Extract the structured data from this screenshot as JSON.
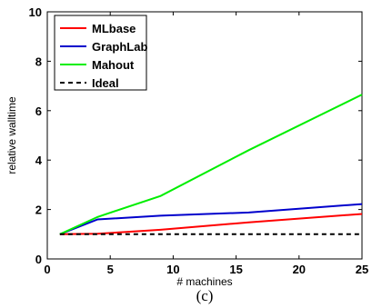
{
  "chart_data": {
    "type": "line",
    "xlabel": "# machines",
    "ylabel": "relative walltime",
    "caption": "(c)",
    "xlim": [
      0,
      25
    ],
    "ylim": [
      0,
      10
    ],
    "xticks": [
      0,
      5,
      10,
      15,
      20,
      25
    ],
    "yticks": [
      0,
      2,
      4,
      6,
      8,
      10
    ],
    "grid": false,
    "legend_position": "top-left",
    "series": [
      {
        "name": "MLbase",
        "color": "#ff0000",
        "dash": "solid",
        "x": [
          1,
          4,
          9,
          16,
          25
        ],
        "y": [
          1.0,
          1.02,
          1.18,
          1.48,
          1.82
        ]
      },
      {
        "name": "GraphLab",
        "color": "#0000cc",
        "dash": "solid",
        "x": [
          1,
          4,
          9,
          16,
          25
        ],
        "y": [
          1.0,
          1.6,
          1.75,
          1.88,
          2.22
        ]
      },
      {
        "name": "Mahout",
        "color": "#00ee00",
        "dash": "solid",
        "x": [
          1,
          4,
          9,
          16,
          25
        ],
        "y": [
          1.0,
          1.7,
          2.55,
          4.4,
          6.65
        ]
      },
      {
        "name": "Ideal",
        "color": "#000000",
        "dash": "dashed",
        "x": [
          1,
          4,
          9,
          16,
          25
        ],
        "y": [
          1.0,
          1.0,
          1.0,
          1.0,
          1.0
        ]
      }
    ]
  }
}
